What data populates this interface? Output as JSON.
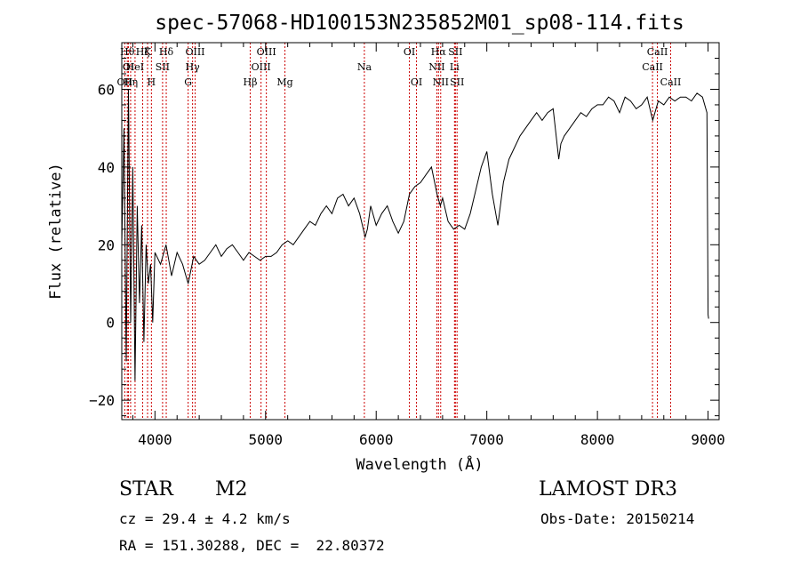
{
  "chart_data": {
    "type": "line",
    "title": "spec-57068-HD100153N235852M01_sp08-114.fits",
    "xlabel": "Wavelength (Å)",
    "ylabel": "Flux (relative)",
    "xlim": [
      3700,
      9100
    ],
    "ylim": [
      -25,
      72
    ],
    "x_ticks": [
      4000,
      5000,
      6000,
      7000,
      8000,
      9000
    ],
    "y_ticks": [
      -20,
      0,
      20,
      40,
      60
    ],
    "grid": false,
    "series_color": "#000000",
    "line_marker_color": "#cc0000",
    "spectrum": {
      "x": [
        3700,
        3720,
        3740,
        3760,
        3780,
        3800,
        3820,
        3840,
        3860,
        3880,
        3900,
        3920,
        3940,
        3960,
        3980,
        4000,
        4050,
        4100,
        4150,
        4200,
        4250,
        4300,
        4350,
        4400,
        4450,
        4500,
        4550,
        4600,
        4650,
        4700,
        4750,
        4800,
        4850,
        4900,
        4950,
        5000,
        5050,
        5100,
        5150,
        5200,
        5250,
        5300,
        5350,
        5400,
        5450,
        5500,
        5550,
        5600,
        5650,
        5700,
        5750,
        5800,
        5850,
        5900,
        5920,
        5950,
        6000,
        6050,
        6100,
        6150,
        6200,
        6250,
        6300,
        6350,
        6400,
        6450,
        6500,
        6550,
        6580,
        6600,
        6650,
        6700,
        6750,
        6800,
        6850,
        6900,
        6950,
        7000,
        7050,
        7100,
        7150,
        7200,
        7250,
        7300,
        7350,
        7400,
        7450,
        7500,
        7550,
        7600,
        7650,
        7670,
        7700,
        7750,
        7800,
        7850,
        7900,
        7950,
        8000,
        8050,
        8100,
        8150,
        8200,
        8250,
        8300,
        8350,
        8400,
        8450,
        8500,
        8550,
        8600,
        8650,
        8700,
        8750,
        8800,
        8850,
        8900,
        8950,
        8990,
        9000,
        9005
      ],
      "y": [
        20,
        50,
        -10,
        60,
        0,
        40,
        -15,
        30,
        5,
        25,
        -5,
        20,
        10,
        15,
        0,
        18,
        15,
        20,
        12,
        18,
        15,
        10,
        17,
        15,
        16,
        18,
        20,
        17,
        19,
        20,
        18,
        16,
        18,
        17,
        16,
        17,
        17,
        18,
        20,
        21,
        20,
        22,
        24,
        26,
        25,
        28,
        30,
        28,
        32,
        33,
        30,
        32,
        28,
        22,
        24,
        30,
        25,
        28,
        30,
        26,
        23,
        26,
        33,
        35,
        36,
        38,
        40,
        33,
        30,
        32,
        26,
        24,
        25,
        24,
        28,
        34,
        40,
        44,
        33,
        25,
        36,
        42,
        45,
        48,
        50,
        52,
        54,
        52,
        54,
        55,
        42,
        46,
        48,
        50,
        52,
        54,
        53,
        55,
        56,
        56,
        58,
        57,
        54,
        58,
        57,
        55,
        56,
        58,
        52,
        57,
        56,
        58,
        57,
        58,
        58,
        57,
        59,
        58,
        54,
        2,
        1
      ]
    },
    "markers": [
      {
        "wl": 3727,
        "label": "OII",
        "row": 2
      },
      {
        "wl": 3750,
        "label": "Hθ",
        "row": 0
      },
      {
        "wl": 3760,
        "label": "OI",
        "row": 1
      },
      {
        "wl": 3780,
        "label": "Hη",
        "row": 2
      },
      {
        "wl": 3820,
        "label": "HeI",
        "row": 1
      },
      {
        "wl": 3889,
        "label": "Hζ",
        "row": 0
      },
      {
        "wl": 3933,
        "label": "K",
        "row": 0
      },
      {
        "wl": 3968,
        "label": "H",
        "row": 2
      },
      {
        "wl": 4069,
        "label": "SII",
        "row": 1
      },
      {
        "wl": 4102,
        "label": "Hδ",
        "row": 0
      },
      {
        "wl": 4300,
        "label": "G",
        "row": 2
      },
      {
        "wl": 4340,
        "label": "Hγ",
        "row": 1
      },
      {
        "wl": 4363,
        "label": "OIII",
        "row": 0
      },
      {
        "wl": 4861,
        "label": "Hβ",
        "row": 2
      },
      {
        "wl": 4959,
        "label": "OIII",
        "row": 1
      },
      {
        "wl": 5007,
        "label": "OIII",
        "row": 0
      },
      {
        "wl": 5175,
        "label": "Mg",
        "row": 2
      },
      {
        "wl": 5893,
        "label": "Na",
        "row": 1
      },
      {
        "wl": 6300,
        "label": "OI",
        "row": 0
      },
      {
        "wl": 6364,
        "label": "OI",
        "row": 2
      },
      {
        "wl": 6548,
        "label": "NII",
        "row": 1
      },
      {
        "wl": 6563,
        "label": "Hα",
        "row": 0
      },
      {
        "wl": 6583,
        "label": "NII",
        "row": 2
      },
      {
        "wl": 6708,
        "label": "Li",
        "row": 1
      },
      {
        "wl": 6716,
        "label": "SII",
        "row": 0
      },
      {
        "wl": 6731,
        "label": "SII",
        "row": 2
      },
      {
        "wl": 8498,
        "label": "CaII",
        "row": 1
      },
      {
        "wl": 8542,
        "label": "CaII",
        "row": 0
      },
      {
        "wl": 8662,
        "label": "CaII",
        "row": 2
      }
    ]
  },
  "info": {
    "object_type": "STAR",
    "subclass": "M2",
    "survey": "LAMOST DR3",
    "cz": "cz = 29.4 ± 4.2 km/s",
    "obs_date": "Obs-Date: 20150214",
    "coords": "RA = 151.30288, DEC =  22.80372"
  }
}
